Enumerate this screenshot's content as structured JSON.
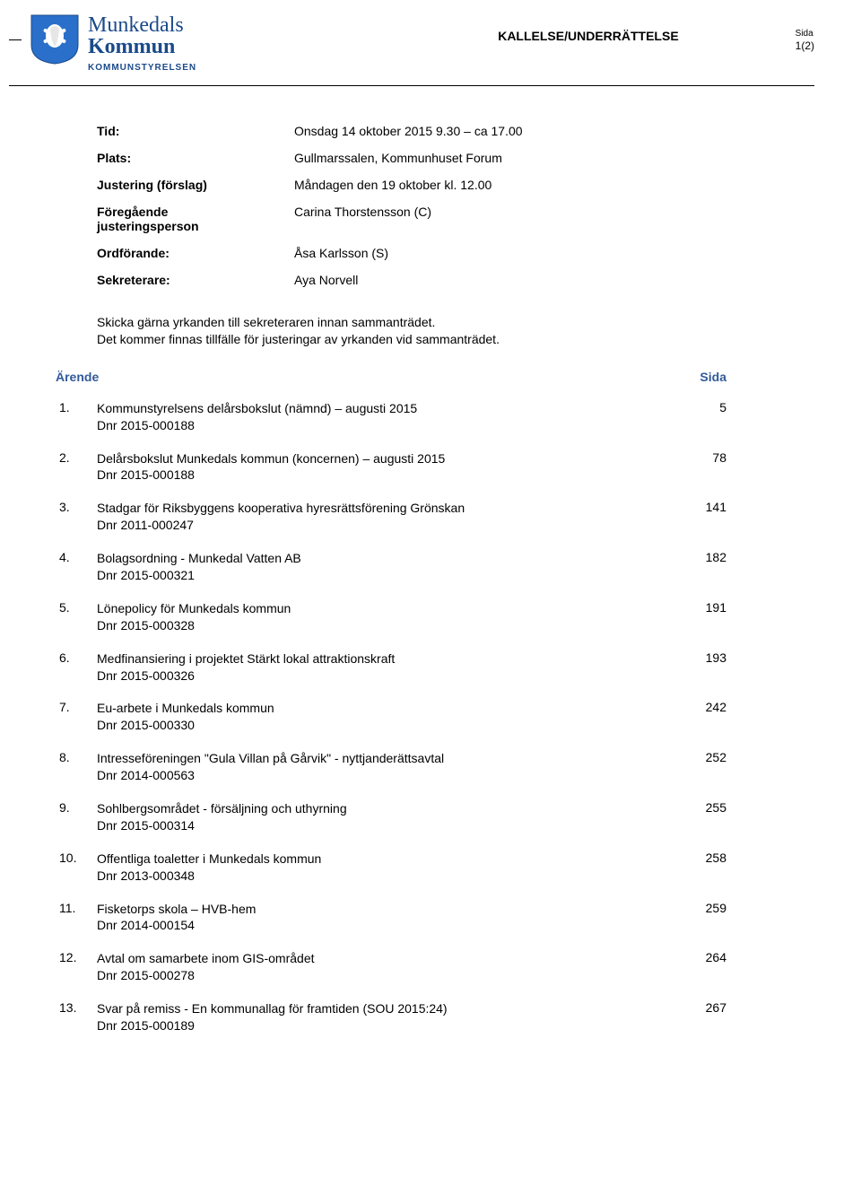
{
  "header": {
    "logo_name_light": "Munkedals",
    "logo_name_bold": "Kommun",
    "logo_sub": "KOMMUNSTYRELSEN",
    "doc_title": "KALLELSE/UNDERRÄTTELSE",
    "page_label": "Sida",
    "page_num": "1(2)"
  },
  "colors": {
    "brand_blue": "#1a4a8a",
    "agenda_blue": "#325a99"
  },
  "meta": [
    {
      "label": "Tid:",
      "value": "Onsdag 14 oktober 2015 9.30 – ca 17.00"
    },
    {
      "label": "Plats:",
      "value": "Gullmarssalen, Kommunhuset Forum"
    },
    {
      "label": "Justering (förslag)",
      "value": "Måndagen den 19 oktober kl. 12.00"
    },
    {
      "label": "Föregående justeringsperson",
      "value": "Carina Thorstensson (C)"
    },
    {
      "label": "Ordförande:",
      "value": "Åsa Karlsson (S)"
    },
    {
      "label": "Sekreterare:",
      "value": "Aya Norvell"
    }
  ],
  "note1": "Skicka gärna yrkanden till sekreteraren innan sammanträdet.",
  "note2": "Det kommer finnas tillfälle för justeringar av yrkanden vid sammanträdet.",
  "agenda_header_left": "Ärende",
  "agenda_header_right": "Sida",
  "agenda": [
    {
      "num": "1.",
      "title": "Kommunstyrelsens delårsbokslut (nämnd) – augusti 2015",
      "dnr": "Dnr 2015-000188",
      "page": "5"
    },
    {
      "num": "2.",
      "title": "Delårsbokslut Munkedals kommun (koncernen) – augusti 2015",
      "dnr": "Dnr 2015-000188",
      "page": "78"
    },
    {
      "num": "3.",
      "title": "Stadgar för Riksbyggens kooperativa hyresrättsförening Grönskan",
      "dnr": "Dnr 2011-000247",
      "page": "141"
    },
    {
      "num": "4.",
      "title": "Bolagsordning - Munkedal Vatten AB",
      "dnr": "Dnr 2015-000321",
      "page": "182"
    },
    {
      "num": "5.",
      "title": "Lönepolicy för Munkedals kommun",
      "dnr": "Dnr 2015-000328",
      "page": "191"
    },
    {
      "num": "6.",
      "title": "Medfinansiering i projektet Stärkt lokal attraktionskraft",
      "dnr": "Dnr 2015-000326",
      "page": "193"
    },
    {
      "num": "7.",
      "title": "Eu-arbete i Munkedals kommun",
      "dnr": "Dnr 2015-000330",
      "page": "242"
    },
    {
      "num": "8.",
      "title": "Intresseföreningen \"Gula Villan på Gårvik\" - nyttjanderättsavtal",
      "dnr": "Dnr 2014-000563",
      "page": "252"
    },
    {
      "num": "9.",
      "title": "Sohlbergsområdet - försäljning och uthyrning",
      "dnr": "Dnr 2015-000314",
      "page": "255"
    },
    {
      "num": "10.",
      "title": "Offentliga toaletter i Munkedals kommun",
      "dnr": "Dnr 2013-000348",
      "page": "258"
    },
    {
      "num": "11.",
      "title": "Fisketorps skola – HVB-hem",
      "dnr": "Dnr 2014-000154",
      "page": "259"
    },
    {
      "num": "12.",
      "title": "Avtal om samarbete inom GIS-området",
      "dnr": "Dnr 2015-000278",
      "page": "264"
    },
    {
      "num": "13.",
      "title": "Svar på remiss - En kommunallag för framtiden (SOU 2015:24)",
      "dnr": "Dnr 2015-000189",
      "page": "267"
    }
  ]
}
